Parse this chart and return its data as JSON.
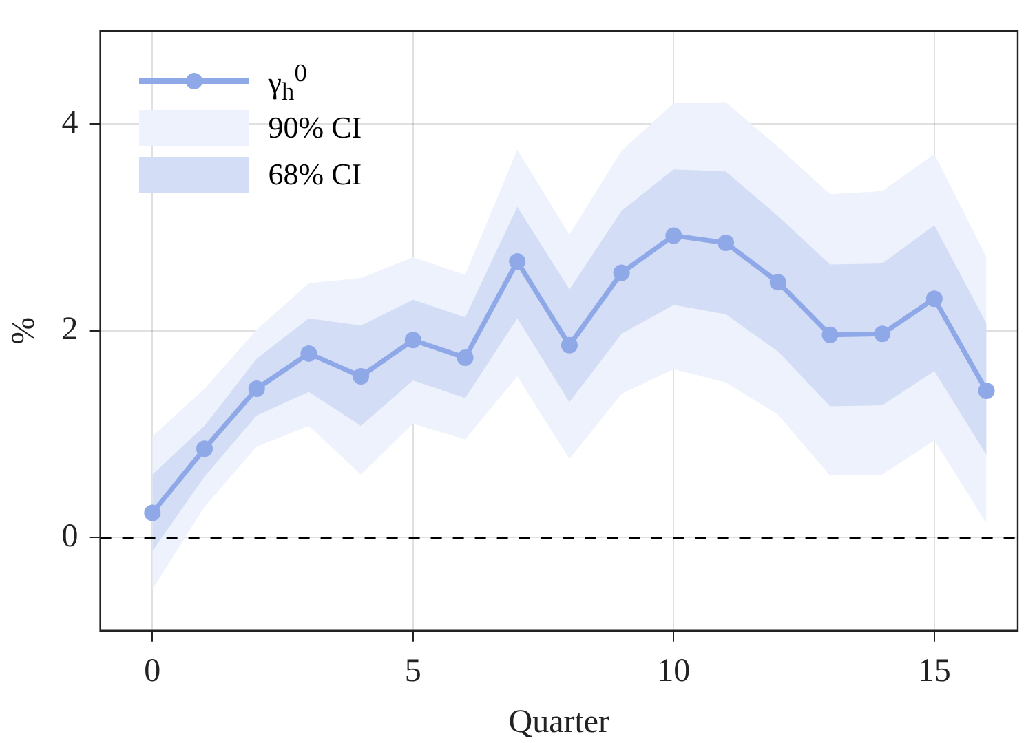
{
  "chart_data": {
    "type": "line",
    "xlabel": "Quarter",
    "ylabel": "%",
    "x": [
      0,
      1,
      2,
      3,
      4,
      5,
      6,
      7,
      8,
      9,
      10,
      11,
      12,
      13,
      14,
      15,
      16
    ],
    "series": [
      {
        "name": "γ$_{h}$$^{0}$",
        "type": "line",
        "color": "#8fa8e8",
        "values": [
          0.24,
          0.86,
          1.44,
          1.78,
          1.56,
          1.91,
          1.74,
          2.67,
          1.86,
          2.56,
          2.92,
          2.85,
          2.47,
          1.96,
          1.97,
          2.31,
          1.42
        ]
      },
      {
        "name": "90% CI",
        "type": "area",
        "marker": "none",
        "color": "#eef2fc",
        "values": [
          null,
          null,
          null,
          null,
          null,
          null,
          null,
          null,
          null,
          null,
          null,
          null,
          null,
          null,
          null,
          null,
          null
        ],
        "lower": [
          -0.5,
          0.3,
          0.88,
          1.08,
          0.61,
          1.1,
          0.95,
          1.56,
          0.76,
          1.39,
          1.63,
          1.5,
          1.19,
          0.6,
          0.61,
          0.94,
          0.14
        ],
        "upper": [
          0.98,
          1.44,
          2.01,
          2.46,
          2.51,
          2.71,
          2.54,
          3.75,
          2.93,
          3.74,
          4.2,
          4.21,
          3.78,
          3.32,
          3.35,
          3.71,
          2.71
        ]
      },
      {
        "name": "68% CI",
        "type": "area",
        "marker": "none",
        "color": "#d3ddf5",
        "values": [
          null,
          null,
          null,
          null,
          null,
          null,
          null,
          null,
          null,
          null,
          null,
          null,
          null,
          null,
          null,
          null,
          null
        ],
        "lower": [
          -0.13,
          0.59,
          1.18,
          1.41,
          1.08,
          1.52,
          1.35,
          2.12,
          1.31,
          1.97,
          2.25,
          2.16,
          1.8,
          1.27,
          1.28,
          1.61,
          0.8
        ],
        "upper": [
          0.61,
          1.08,
          1.73,
          2.12,
          2.05,
          2.3,
          2.13,
          3.2,
          2.4,
          3.16,
          3.56,
          3.54,
          3.11,
          2.64,
          2.65,
          3.02,
          2.07
        ]
      }
    ],
    "xlim": [
      -1,
      16.6
    ],
    "xticks": [
      0,
      5,
      10,
      15
    ],
    "ylim": [
      -0.9,
      4.9
    ],
    "yticks": [
      0,
      2,
      4
    ],
    "ref_lines": [
      {
        "axis": "y",
        "value": 0,
        "color": "#000000",
        "line_style": "dashed"
      }
    ],
    "grid": true,
    "legend": "top left",
    "marker": "circle",
    "line_style": "solid"
  }
}
